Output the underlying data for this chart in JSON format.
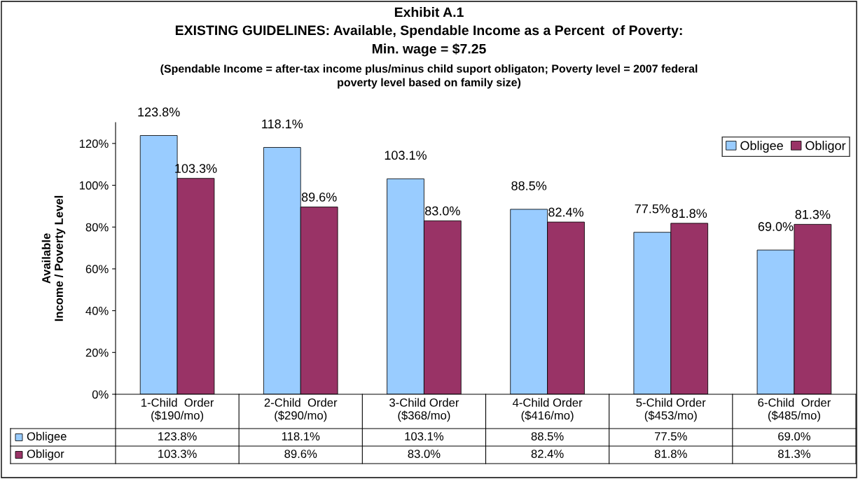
{
  "chart_data": {
    "type": "bar",
    "title": "Exhibit A.1\nEXISTING GUIDELINES: Available, Spendable Income as a Percent  of Poverty:\nMin. wage = $7.25",
    "subtitle": "(Spendable Income = after-tax income plus/minus child suport obligaton; Poverty level = 2007 federal\npoverty level based on family size)",
    "ylabel": "Available\nIncome / Poverty Level",
    "categories": [
      "1-Child  Order\n($190/mo)",
      "2-Child  Order\n($290/mo)",
      "3-Child Order\n($368/mo)",
      "4-Child Order\n($416/mo)",
      "5-Child Order\n($453/mo)",
      "6-Child  Order\n($485/mo)"
    ],
    "series": [
      {
        "name": "Obligee",
        "color": "#99ccff",
        "values": [
          123.8,
          118.1,
          103.1,
          88.5,
          77.5,
          69.0
        ],
        "value_labels": [
          "123.8%",
          "118.1%",
          "103.1%",
          "88.5%",
          "77.5%",
          "69.0%"
        ]
      },
      {
        "name": "Obligor",
        "color": "#993366",
        "values": [
          103.3,
          89.6,
          83.0,
          82.4,
          81.8,
          81.3
        ],
        "value_labels": [
          "103.3%",
          "89.6%",
          "83.0%",
          "82.4%",
          "81.8%",
          "81.3%"
        ]
      }
    ],
    "ylim": [
      0,
      130
    ],
    "yticks": [
      {
        "value": 0,
        "label": "0%"
      },
      {
        "value": 20,
        "label": "20%"
      },
      {
        "value": 40,
        "label": "40%"
      },
      {
        "value": 60,
        "label": "60%"
      },
      {
        "value": 80,
        "label": "80%"
      },
      {
        "value": 100,
        "label": "100%"
      },
      {
        "value": 120,
        "label": "120%"
      }
    ],
    "legend": "top right",
    "grid": false
  }
}
